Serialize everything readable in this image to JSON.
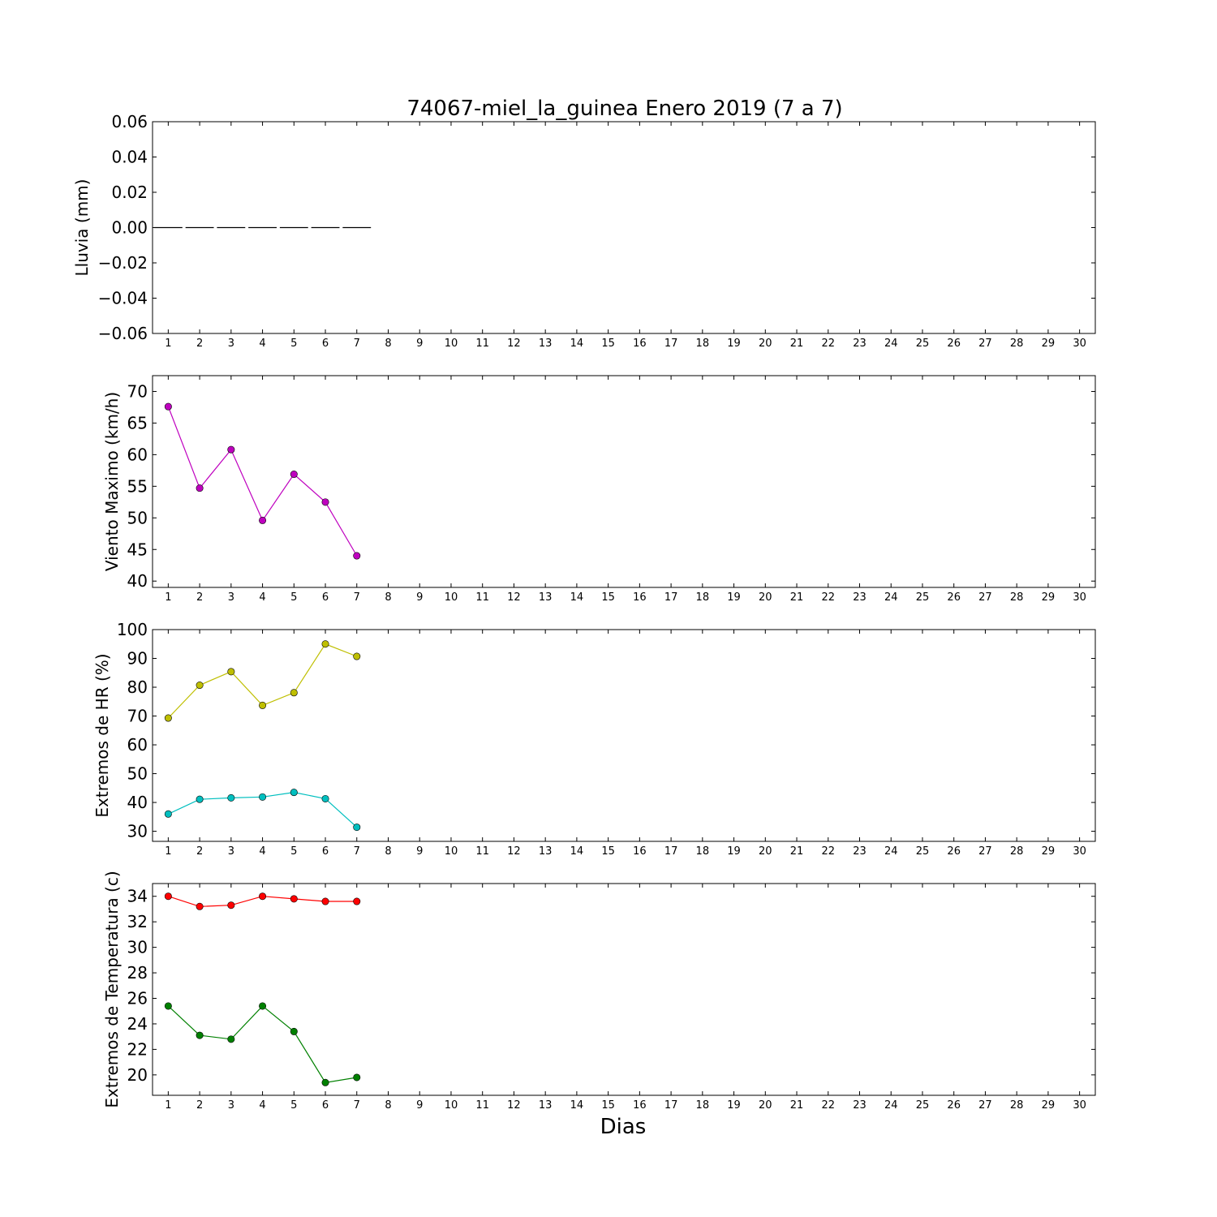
{
  "title": "74067-miel_la_guinea Enero 2019  (7 a 7)",
  "xlabel": "Dias",
  "chart_data": [
    {
      "type": "bar",
      "ylabel": "Lluvia (mm)",
      "xlim": [
        0.5,
        30.5
      ],
      "ylim": [
        -0.06,
        0.06
      ],
      "yticks": [
        0.06,
        0.04,
        0.02,
        0.0,
        -0.02,
        -0.04,
        -0.06
      ],
      "ytick_labels": [
        "0.06",
        "0.04",
        "0.02",
        "0.00",
        "−0.02",
        "−0.04",
        "−0.06"
      ],
      "x": [
        1,
        2,
        3,
        4,
        5,
        6,
        7
      ],
      "series": [
        {
          "values": [
            0,
            0,
            0,
            0,
            0,
            0,
            0
          ],
          "color": "#000000"
        }
      ]
    },
    {
      "type": "line",
      "ylabel": "Viento Maximo (km/h)",
      "xlim": [
        0.5,
        30.5
      ],
      "ylim": [
        39,
        72.5
      ],
      "yticks": [
        70,
        65,
        60,
        55,
        50,
        45,
        40
      ],
      "ytick_labels": [
        "70",
        "65",
        "60",
        "55",
        "50",
        "45",
        "40"
      ],
      "x": [
        1,
        2,
        3,
        4,
        5,
        6,
        7
      ],
      "series": [
        {
          "values": [
            67.6,
            54.7,
            60.8,
            49.6,
            56.9,
            52.5,
            44.0
          ],
          "color": "#bf00bf"
        }
      ]
    },
    {
      "type": "line",
      "ylabel": "Extremos de HR (%)",
      "xlim": [
        0.5,
        30.5
      ],
      "ylim": [
        26.5,
        100
      ],
      "yticks": [
        100,
        90,
        80,
        70,
        60,
        50,
        40,
        30
      ],
      "ytick_labels": [
        "100",
        "90",
        "80",
        "70",
        "60",
        "50",
        "40",
        "30"
      ],
      "x": [
        1,
        2,
        3,
        4,
        5,
        6,
        7
      ],
      "series": [
        {
          "values": [
            69.3,
            80.7,
            85.4,
            73.7,
            78.1,
            95.0,
            90.7
          ],
          "color": "#bfbf00"
        },
        {
          "values": [
            36.0,
            41.1,
            41.6,
            41.9,
            43.5,
            41.3,
            31.4
          ],
          "color": "#00bfbf"
        }
      ]
    },
    {
      "type": "line",
      "ylabel": "Extremos de Temperatura (c)",
      "xlim": [
        0.5,
        30.5
      ],
      "ylim": [
        18.4,
        35.0
      ],
      "yticks": [
        34,
        32,
        30,
        28,
        26,
        24,
        22,
        20
      ],
      "ytick_labels": [
        "34",
        "32",
        "30",
        "28",
        "26",
        "24",
        "22",
        "20"
      ],
      "x": [
        1,
        2,
        3,
        4,
        5,
        6,
        7
      ],
      "series": [
        {
          "values": [
            34.0,
            33.2,
            33.3,
            34.0,
            33.8,
            33.6,
            33.6
          ],
          "color": "#ff0000"
        },
        {
          "values": [
            25.4,
            23.1,
            22.8,
            25.4,
            23.4,
            19.4,
            19.8
          ],
          "color": "#008000"
        }
      ]
    }
  ],
  "xticks": [
    1,
    2,
    3,
    4,
    5,
    6,
    7,
    8,
    9,
    10,
    11,
    12,
    13,
    14,
    15,
    16,
    17,
    18,
    19,
    20,
    21,
    22,
    23,
    24,
    25,
    26,
    27,
    28,
    29,
    30
  ]
}
